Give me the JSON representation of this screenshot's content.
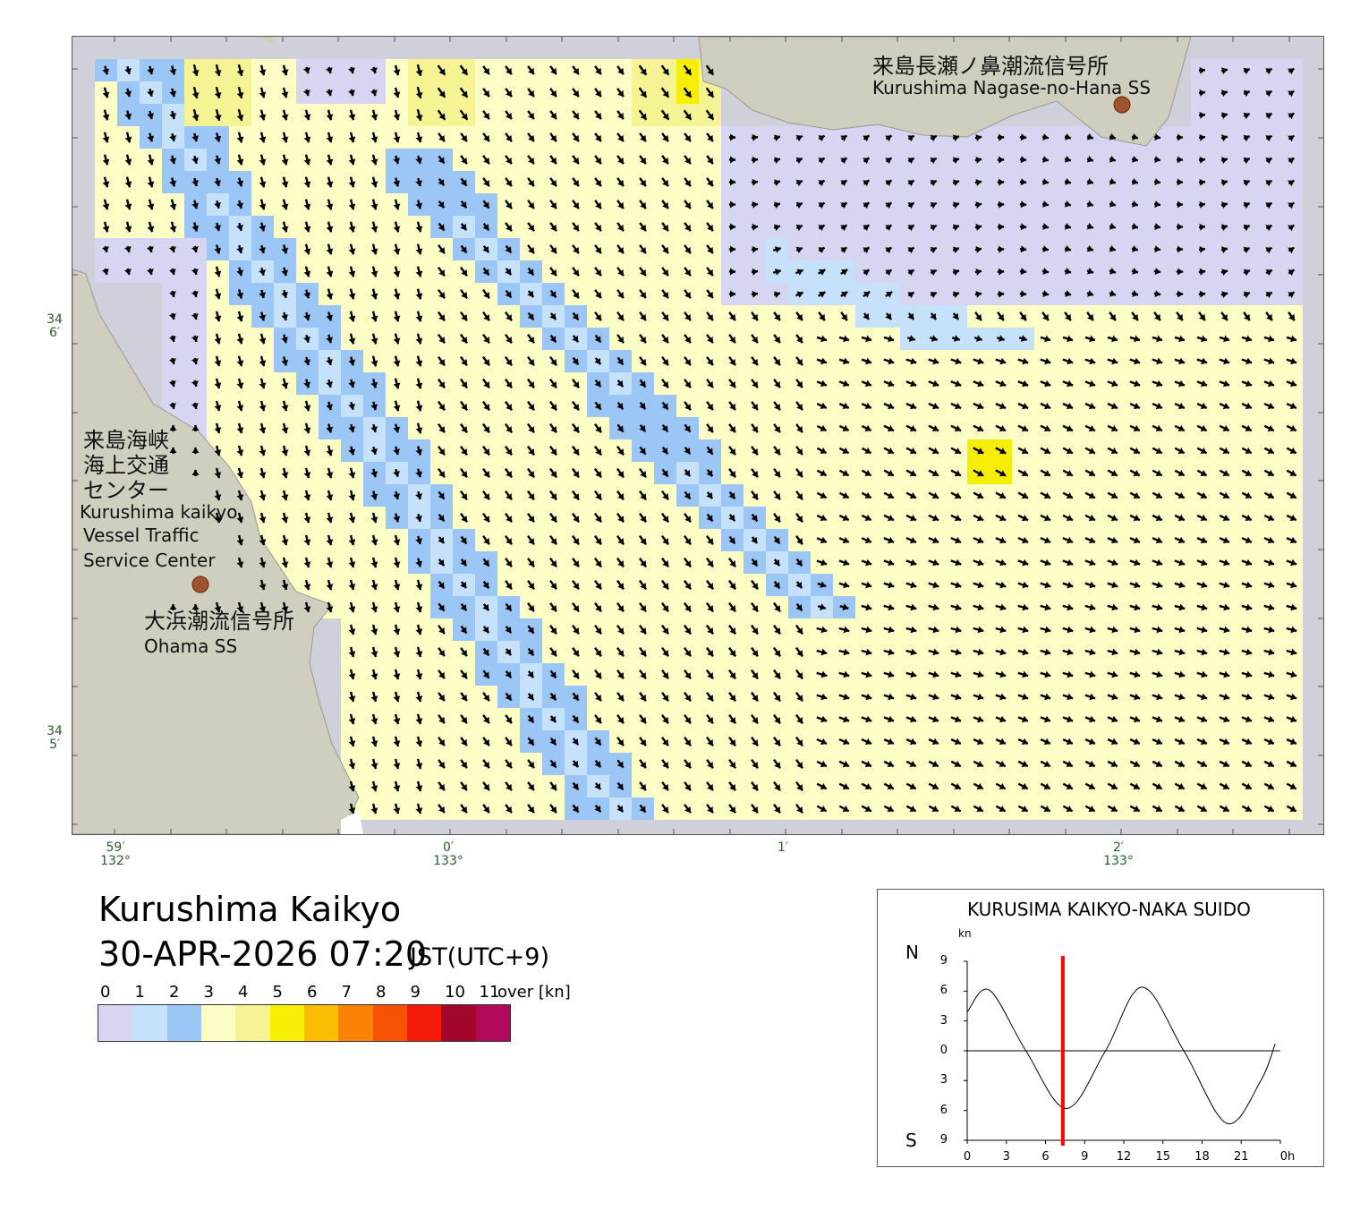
{
  "map": {
    "title": "Kurushima Kaikyo",
    "date_time": "30-APR-2026 07:20",
    "timezone": "JST(UTC+9)",
    "land_color": "#d0cfbf",
    "water_color": "#cfd0d9",
    "station_marker_color": "#a0522d",
    "places": {
      "nagase_jp": "来島長瀬ノ鼻潮流信号所",
      "nagase_en": "Kurushima Nagase-no-Hana SS",
      "vts_jp_1": "来島海峡",
      "vts_jp_2": "海上交通",
      "vts_jp_3": "センター",
      "vts_en_1": "Kurushima kaikyo",
      "vts_en_2": "Vessel Traffic",
      "vts_en_3": "Service Center",
      "ohama_jp": "大浜潮流信号所",
      "ohama_en": "Ohama SS"
    },
    "lat_labels": [
      {
        "deg": "34",
        "min": "6′"
      },
      {
        "deg": "34",
        "min": "5′"
      }
    ],
    "lon_labels": [
      {
        "min": "59′",
        "deg": "132°"
      },
      {
        "min": "0′",
        "deg": "133°"
      },
      {
        "min": "1′",
        "deg": ""
      },
      {
        "min": "2′",
        "deg": "133°"
      }
    ]
  },
  "legend": {
    "labels": [
      "0",
      "1",
      "2",
      "3",
      "4",
      "5",
      "6",
      "7",
      "8",
      "9",
      "10",
      "11"
    ],
    "over_label": "over [kn]",
    "colors": [
      "#d6d6f3",
      "#c6e1fa",
      "#9bc6f6",
      "#fdfdc6",
      "#f6f395",
      "#f6ee05",
      "#fbbe05",
      "#fa8205",
      "#f65204",
      "#f31a0a",
      "#a2062a",
      "#b2095a"
    ]
  },
  "tide_chart": {
    "title": "KURUSIMA KAIKYO-NAKA SUIDO",
    "unit": "kn",
    "north_label": "N",
    "south_label": "S",
    "y_tick_labels": [
      "9",
      "6",
      "3",
      "0",
      "3",
      "6",
      "9"
    ],
    "x_tick_labels": [
      "0",
      "3",
      "6",
      "9",
      "12",
      "15",
      "18",
      "21",
      "0h"
    ],
    "current_hour": 7.33,
    "now_line_color": "#ff0000",
    "chart_data": {
      "type": "line",
      "xlabel": "h",
      "ylabel": "kn",
      "xlim": [
        0,
        24
      ],
      "ylim": [
        -9,
        9
      ],
      "series": [
        {
          "x": [
            0,
            1.7,
            4.5,
            7.6,
            10.6,
            13.4,
            16.6,
            19.9,
            22.5,
            23.6
          ],
          "values": [
            3.9,
            6.1,
            0,
            -5.8,
            0,
            6.4,
            0,
            -7.3,
            -3.0,
            0.7
          ]
        }
      ]
    }
  }
}
